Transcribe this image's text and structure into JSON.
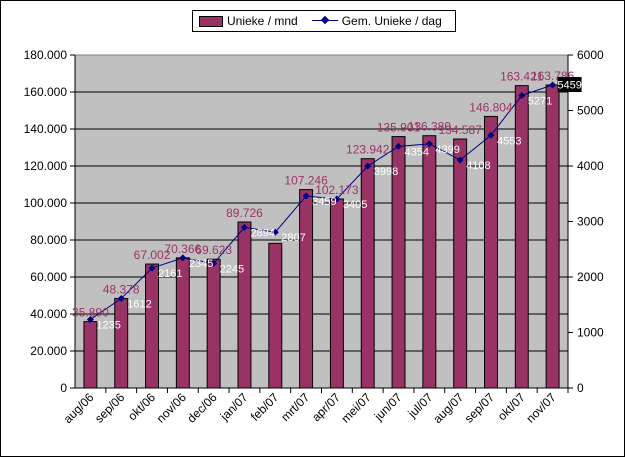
{
  "chart_data": {
    "type": "bar",
    "title": "",
    "categories": [
      "aug/06",
      "sep/06",
      "okt/06",
      "nov/06",
      "dec/06",
      "jan/07",
      "feb/07",
      "mrt/07",
      "apr/07",
      "mei/07",
      "jun/07",
      "jul/07",
      "aug/07",
      "sep/07",
      "okt/07",
      "nov/07"
    ],
    "series": [
      {
        "name": "Unieke / mnd",
        "type": "bar",
        "axis": "left",
        "color": "#993366",
        "values": [
          35890,
          48378,
          67002,
          70366,
          69623,
          89726,
          78200,
          107246,
          102173,
          123942,
          135901,
          136380,
          134587,
          146804,
          163421,
          163786
        ],
        "labels": [
          "35.890",
          "48.378",
          "67.002",
          "70.366",
          "69.623",
          "89.726",
          "",
          "107.246",
          "102.173",
          "123.942",
          "135.901",
          "136.380",
          "134.587",
          "146.804",
          "163.421",
          "163.786"
        ]
      },
      {
        "name": "Gem. Unieke / dag",
        "type": "line",
        "axis": "right",
        "color": "#000080",
        "values": [
          1235,
          1612,
          2161,
          2345,
          2245,
          2894,
          2807,
          3459,
          3405,
          3998,
          4354,
          4399,
          4108,
          4553,
          5271,
          5459
        ],
        "labels": [
          "1235",
          "1612",
          "2161",
          "2345",
          "2245",
          "2894",
          "2807",
          "3459",
          "3405",
          "3998",
          "4354",
          "4399",
          "4108",
          "4553",
          "5271",
          "5459"
        ]
      }
    ],
    "y_left": {
      "min": 0,
      "max": 180000,
      "step": 20000,
      "tick_labels": [
        "0",
        "20.000",
        "40.000",
        "60.000",
        "80.000",
        "100.000",
        "120.000",
        "140.000",
        "160.000",
        "180.000"
      ]
    },
    "y_right": {
      "min": 0,
      "max": 6000,
      "step": 1000,
      "tick_labels": [
        "0",
        "1000",
        "2000",
        "3000",
        "4000",
        "5000",
        "6000"
      ]
    },
    "legend_position": "top-center",
    "plot_background": "#c0c0c0",
    "gridlines": true
  }
}
